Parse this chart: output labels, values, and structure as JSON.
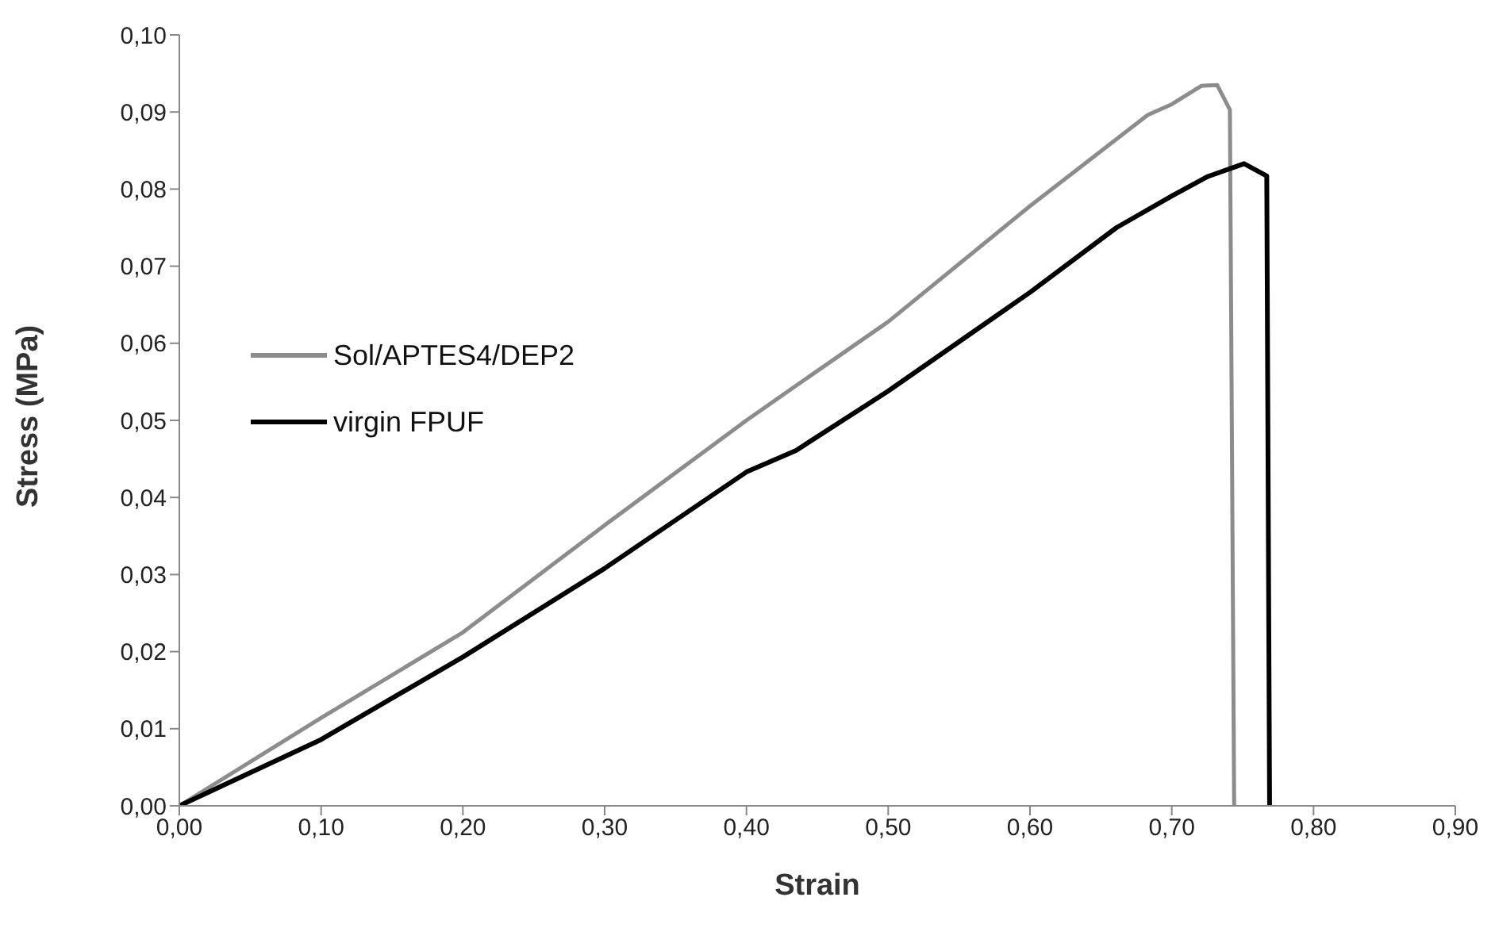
{
  "chart_data": {
    "type": "line",
    "xlabel": "Strain",
    "ylabel": "Stress (MPa)",
    "xlim": [
      0,
      0.9
    ],
    "ylim": [
      0,
      0.1
    ],
    "xticks": [
      {
        "value": 0,
        "label": "0,00"
      },
      {
        "value": 0.1,
        "label": "0,10"
      },
      {
        "value": 0.2,
        "label": "0,20"
      },
      {
        "value": 0.3,
        "label": "0,30"
      },
      {
        "value": 0.4,
        "label": "0,40"
      },
      {
        "value": 0.5,
        "label": "0,50"
      },
      {
        "value": 0.6,
        "label": "0,60"
      },
      {
        "value": 0.7,
        "label": "0,70"
      },
      {
        "value": 0.8,
        "label": "0,80"
      },
      {
        "value": 0.9,
        "label": "0,90"
      }
    ],
    "yticks": [
      {
        "value": 0,
        "label": "0,00"
      },
      {
        "value": 0.01,
        "label": "0,01"
      },
      {
        "value": 0.02,
        "label": "0,02"
      },
      {
        "value": 0.03,
        "label": "0,03"
      },
      {
        "value": 0.04,
        "label": "0,04"
      },
      {
        "value": 0.05,
        "label": "0,05"
      },
      {
        "value": 0.06,
        "label": "0,06"
      },
      {
        "value": 0.07,
        "label": "0,07"
      },
      {
        "value": 0.08,
        "label": "0,08"
      },
      {
        "value": 0.09,
        "label": "0,09"
      },
      {
        "value": 0.1,
        "label": "0,10"
      }
    ],
    "grid": false,
    "legend": "left",
    "marker": "none",
    "line_style": "solid",
    "series": [
      {
        "name": "Sol/APTES4/DEP2",
        "color": "#8c8c8c",
        "x": [
          0,
          0.1,
          0.2,
          0.3,
          0.4,
          0.435,
          0.5,
          0.6,
          0.683,
          0.7,
          0.721,
          0.732,
          0.741,
          0.744
        ],
        "values": [
          0,
          0.0114,
          0.0225,
          0.0364,
          0.05,
          0.0545,
          0.0628,
          0.0778,
          0.0896,
          0.091,
          0.0934,
          0.0935,
          0.0903,
          0
        ]
      },
      {
        "name": "virgin FPUF",
        "color": "#000000",
        "x": [
          0,
          0.1,
          0.2,
          0.3,
          0.4,
          0.435,
          0.5,
          0.6,
          0.661,
          0.7,
          0.725,
          0.751,
          0.767,
          0.769
        ],
        "values": [
          0,
          0.0086,
          0.0193,
          0.0308,
          0.0433,
          0.0461,
          0.0538,
          0.0666,
          0.075,
          0.0791,
          0.0816,
          0.0833,
          0.0817,
          0
        ]
      }
    ]
  }
}
